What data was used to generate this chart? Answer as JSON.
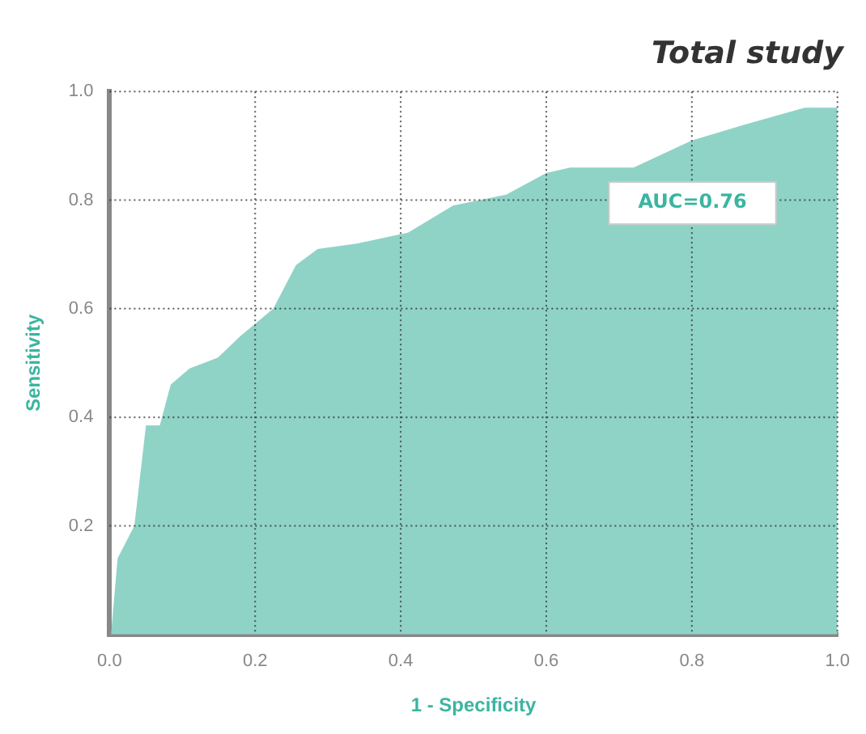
{
  "chart_data": {
    "type": "area",
    "title": "Total study",
    "xlabel": "1 - Specificity",
    "ylabel": "Sensitivity",
    "x": [
      0.002,
      0.011,
      0.034,
      0.05,
      0.069,
      0.084,
      0.11,
      0.149,
      0.18,
      0.225,
      0.256,
      0.286,
      0.34,
      0.41,
      0.472,
      0.545,
      0.6,
      0.633,
      0.662,
      0.72,
      0.8,
      0.875,
      0.955,
      1.0
    ],
    "series": [
      {
        "color": "#8fd3c7",
        "values": [
          0,
          0.14,
          0.2,
          0.385,
          0.385,
          0.46,
          0.49,
          0.51,
          0.55,
          0.6,
          0.68,
          0.71,
          0.72,
          0.74,
          0.79,
          0.81,
          0.85,
          0.86,
          0.86,
          0.86,
          0.91,
          0.94,
          0.97,
          0.97
        ]
      }
    ],
    "xlim": [
      0,
      1
    ],
    "ylim": [
      0,
      1
    ],
    "xticks": [
      {
        "value": 0,
        "label": "0.0"
      },
      0.2,
      0.4,
      0.6,
      0.8,
      {
        "value": 1,
        "label": "1.0"
      }
    ],
    "yticks": [
      {
        "value": 0,
        "label": null
      },
      0.2,
      0.4,
      0.6,
      0.8,
      {
        "value": 1,
        "label": "1.0"
      }
    ],
    "grid": true,
    "legend": false,
    "marker": "none",
    "annotations": [
      "AUC=0.76"
    ]
  }
}
